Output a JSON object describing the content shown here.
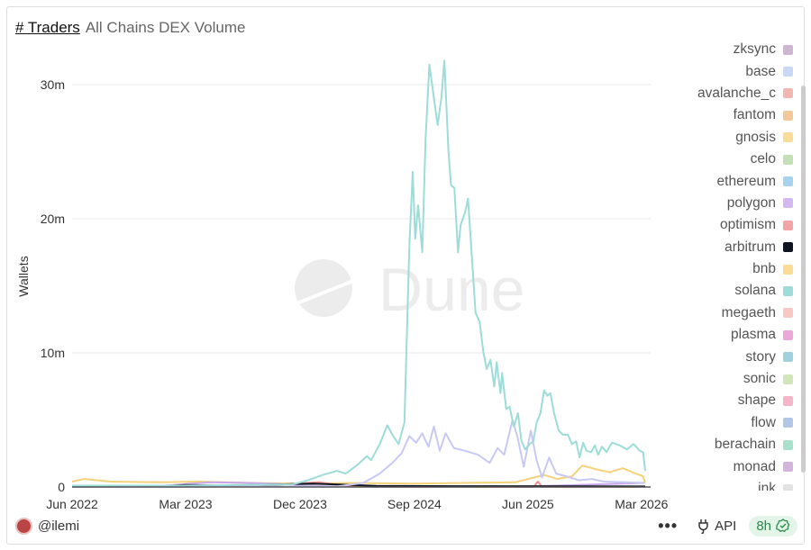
{
  "header": {
    "query_name": "# Traders",
    "subtitle": "All Chains DEX Volume"
  },
  "footer": {
    "user": "@ilemi",
    "more": "•••",
    "api_label": "API",
    "refresh": "8h"
  },
  "colors": {
    "accent_green": "#2a8a4a"
  },
  "chart_data": {
    "type": "line",
    "title": "",
    "ylabel": "Wallets",
    "ylim": [
      0,
      32000000
    ],
    "xlim": [
      "2022-06-01",
      "2026-03-10"
    ],
    "y_ticks": [
      {
        "v": 0,
        "label": "0"
      },
      {
        "v": 10000000,
        "label": "10m"
      },
      {
        "v": 20000000,
        "label": "20m"
      },
      {
        "v": 30000000,
        "label": "30m"
      }
    ],
    "x_ticks": [
      {
        "d": "2022-06-01",
        "label": "Jun 2022"
      },
      {
        "d": "2023-03-01",
        "label": "Mar 2023"
      },
      {
        "d": "2023-12-01",
        "label": "Dec 2023"
      },
      {
        "d": "2024-09-01",
        "label": "Sep 2024"
      },
      {
        "d": "2025-06-01",
        "label": "Jun 2025"
      },
      {
        "d": "2026-03-01",
        "label": "Mar 2026"
      }
    ],
    "grid": true,
    "legend_position": "right",
    "legend": [
      {
        "name": "zksync",
        "color": "#cdb6cf"
      },
      {
        "name": "base",
        "color": "#c9d8f7"
      },
      {
        "name": "avalanche_c",
        "color": "#f0b8b0"
      },
      {
        "name": "fantom",
        "color": "#f4c89a"
      },
      {
        "name": "gnosis",
        "color": "#f8dc98"
      },
      {
        "name": "celo",
        "color": "#c3e0b4"
      },
      {
        "name": "ethereum",
        "color": "#a6d4ee"
      },
      {
        "name": "polygon",
        "color": "#d4b8f2"
      },
      {
        "name": "optimism",
        "color": "#f2a4a6"
      },
      {
        "name": "arbitrum",
        "color": "#0d1520"
      },
      {
        "name": "bnb",
        "color": "#f8dc98"
      },
      {
        "name": "solana",
        "color": "#9ddcd8"
      },
      {
        "name": "megaeth",
        "color": "#f7c8c4"
      },
      {
        "name": "plasma",
        "color": "#eba8d8"
      },
      {
        "name": "story",
        "color": "#9fd2dc"
      },
      {
        "name": "sonic",
        "color": "#d2e6bc"
      },
      {
        "name": "shape",
        "color": "#f4b6c8"
      },
      {
        "name": "flow",
        "color": "#b4c6e6"
      },
      {
        "name": "berachain",
        "color": "#a8e0cc"
      },
      {
        "name": "monad",
        "color": "#d2b4dc"
      },
      {
        "name": "ink",
        "color": "#e2e2e2"
      }
    ],
    "series": [
      {
        "name": "bnb",
        "color": "#f5d27a",
        "x": [
          "2022-06-01",
          "2022-07-01",
          "2022-09-01",
          "2023-01-01",
          "2023-04-01",
          "2023-08-01",
          "2023-12-01",
          "2024-04-01",
          "2024-09-01",
          "2025-01-01",
          "2025-05-01",
          "2025-07-10",
          "2025-08-10",
          "2025-09-15",
          "2025-10-10",
          "2025-11-15",
          "2025-12-15",
          "2026-01-15",
          "2026-02-15",
          "2026-03-05",
          "2026-03-10"
        ],
        "y": [
          400000,
          600000,
          400000,
          350000,
          400000,
          300000,
          250000,
          300000,
          250000,
          300000,
          350000,
          900000,
          600000,
          800000,
          1600000,
          1300000,
          1100000,
          1400000,
          1000000,
          800000,
          300000
        ]
      },
      {
        "name": "polygon",
        "color": "#c7a6ea",
        "x": [
          "2022-06-01",
          "2023-01-01",
          "2023-05-01",
          "2023-08-01",
          "2023-11-01",
          "2024-02-01",
          "2025-06-01",
          "2025-10-01",
          "2026-03-10"
        ],
        "y": [
          50000,
          80000,
          350000,
          300000,
          200000,
          50000,
          50000,
          150000,
          300000
        ]
      },
      {
        "name": "optimism",
        "color": "#ef8f8f",
        "x": [
          "2022-06-01",
          "2023-06-01",
          "2023-10-01",
          "2024-01-15",
          "2024-03-15",
          "2024-06-01",
          "2025-06-15",
          "2025-06-25",
          "2025-07-05",
          "2026-03-10"
        ],
        "y": [
          30000,
          60000,
          150000,
          350000,
          100000,
          20000,
          20000,
          400000,
          20000,
          20000
        ]
      },
      {
        "name": "arbitrum",
        "color": "#0d1520",
        "x": [
          "2022-06-01",
          "2023-01-01",
          "2023-03-01",
          "2023-06-01",
          "2023-10-01",
          "2024-01-01",
          "2024-06-01",
          "2025-01-01",
          "2026-03-10"
        ],
        "y": [
          30000,
          60000,
          150000,
          100000,
          180000,
          250000,
          80000,
          60000,
          40000
        ]
      },
      {
        "name": "base",
        "color": "#c7c9f4",
        "x": [
          "2022-06-01",
          "2024-03-01",
          "2024-05-01",
          "2024-06-10",
          "2024-07-10",
          "2024-08-01",
          "2024-08-20",
          "2024-09-05",
          "2024-09-20",
          "2024-10-05",
          "2024-10-18",
          "2024-11-01",
          "2024-11-15",
          "2024-12-05",
          "2025-01-01",
          "2025-02-01",
          "2025-03-01",
          "2025-03-20",
          "2025-04-05",
          "2025-04-25",
          "2025-05-08",
          "2025-05-22",
          "2025-06-08",
          "2025-06-22",
          "2025-07-05",
          "2025-07-22",
          "2025-08-08",
          "2025-09-01",
          "2025-10-01",
          "2025-11-01",
          "2025-12-01",
          "2026-03-10"
        ],
        "y": [
          0,
          50000,
          300000,
          1000000,
          1800000,
          2500000,
          3800000,
          3300000,
          4000000,
          3000000,
          4500000,
          2700000,
          4000000,
          2900000,
          2700000,
          2400000,
          1800000,
          2900000,
          2400000,
          5000000,
          3600000,
          1500000,
          4200000,
          2000000,
          700000,
          2200000,
          1000000,
          800000,
          500000,
          600000,
          400000,
          300000
        ]
      },
      {
        "name": "solana",
        "color": "#9ddcd8",
        "x": [
          "2022-06-01",
          "2023-02-15",
          "2023-11-15",
          "2023-12-20",
          "2024-01-25",
          "2024-02-28",
          "2024-03-20",
          "2024-04-15",
          "2024-05-10",
          "2024-05-20",
          "2024-06-10",
          "2024-06-28",
          "2024-07-10",
          "2024-07-25",
          "2024-08-08",
          "2024-08-20",
          "2024-08-28",
          "2024-09-03",
          "2024-09-10",
          "2024-09-20",
          "2024-09-28",
          "2024-10-07",
          "2024-10-20",
          "2024-10-27",
          "2024-11-05",
          "2024-11-12",
          "2024-11-22",
          "2024-11-28",
          "2024-12-06",
          "2024-12-15",
          "2024-12-21",
          "2025-01-01",
          "2025-01-08",
          "2025-01-26",
          "2025-02-05",
          "2025-02-14",
          "2025-02-22",
          "2025-03-03",
          "2025-03-12",
          "2025-03-18",
          "2025-03-27",
          "2025-03-31",
          "2025-04-10",
          "2025-04-18",
          "2025-04-28",
          "2025-05-08",
          "2025-05-16",
          "2025-05-25",
          "2025-06-05",
          "2025-06-14",
          "2025-06-22",
          "2025-07-01",
          "2025-07-10",
          "2025-07-18",
          "2025-07-25",
          "2025-08-03",
          "2025-08-14",
          "2025-08-24",
          "2025-09-05",
          "2025-09-15",
          "2025-09-25",
          "2025-10-03",
          "2025-10-12",
          "2025-10-20",
          "2025-10-31",
          "2025-11-09",
          "2025-11-17",
          "2025-11-26",
          "2025-12-07",
          "2025-12-20",
          "2026-01-08",
          "2026-01-25",
          "2026-02-10",
          "2026-02-25",
          "2026-03-05",
          "2026-03-10"
        ],
        "y": [
          100000,
          100000,
          200000,
          500000,
          900000,
          1200000,
          1000000,
          1600000,
          2300000,
          2000000,
          3200000,
          4600000,
          3900000,
          3200000,
          4800000,
          18000000,
          23500000,
          18500000,
          21000000,
          17500000,
          26000000,
          31500000,
          28500000,
          27000000,
          29000000,
          31800000,
          25000000,
          22500000,
          22300000,
          17500000,
          19500000,
          20500000,
          21500000,
          13000000,
          12300000,
          10000000,
          8800000,
          9500000,
          7500000,
          9300000,
          7000000,
          8500000,
          5800000,
          6000000,
          4500000,
          5500000,
          3500000,
          2800000,
          3200000,
          3400000,
          4800000,
          5500000,
          7200000,
          6800000,
          7000000,
          5500000,
          4200000,
          3900000,
          3900000,
          3200000,
          3400000,
          2200000,
          3300000,
          2700000,
          2600000,
          3100000,
          2400000,
          3000000,
          2600000,
          3300000,
          3100000,
          2800000,
          3200000,
          2700000,
          2600000,
          1200000
        ]
      }
    ]
  }
}
